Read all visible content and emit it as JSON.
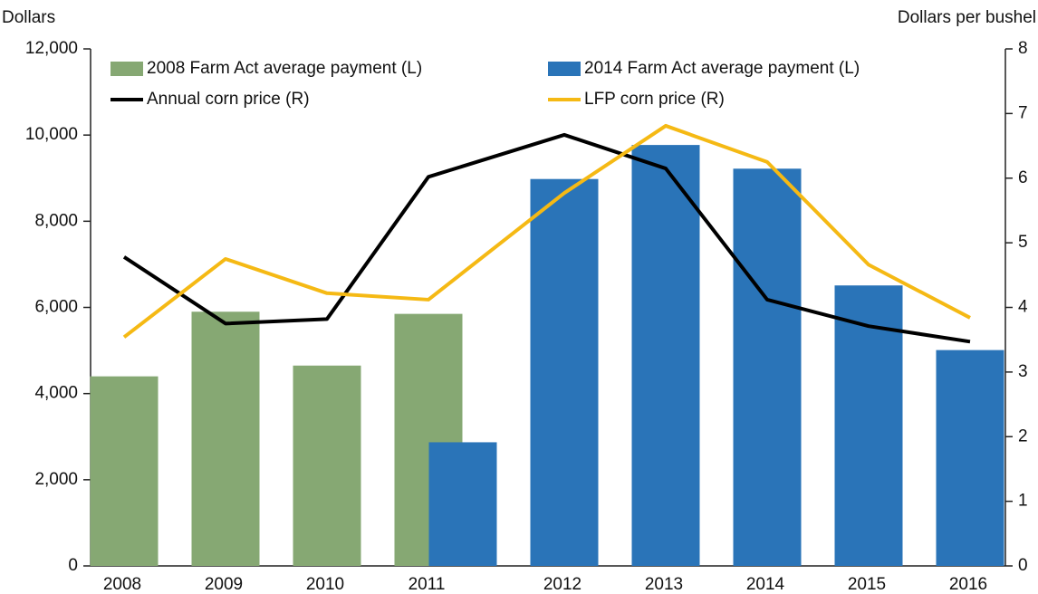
{
  "chart_data": {
    "type": "bar",
    "y_label": "Dollars",
    "y2_label": "Dollars per bushel",
    "categories": [
      "2008",
      "2009",
      "2010",
      "2011",
      "2012",
      "2013",
      "2014",
      "2015",
      "2016"
    ],
    "series": [
      {
        "name": "2008 Farm Act average payment (L)",
        "type": "bar",
        "color": "#86a873",
        "values": [
          4400,
          5900,
          4650,
          5850,
          null,
          null,
          null,
          null,
          null
        ]
      },
      {
        "name": "2014 Farm Act average payment (L)",
        "type": "bar",
        "color": "#2a74b8",
        "values": [
          null,
          null,
          null,
          2870,
          8980,
          9770,
          9220,
          6510,
          5010
        ]
      },
      {
        "name": "Annual corn price (R)",
        "type": "line",
        "axis": "y2",
        "color": "#000000",
        "values": [
          4.78,
          3.75,
          3.82,
          6.02,
          6.67,
          6.15,
          4.12,
          3.71,
          3.47
        ]
      },
      {
        "name": "LFP corn price (R)",
        "type": "line",
        "axis": "y2",
        "color": "#f5b914",
        "values": [
          3.54,
          4.75,
          4.22,
          4.12,
          5.77,
          6.81,
          6.25,
          4.66,
          3.84
        ]
      }
    ],
    "ylim": [
      0,
      12000
    ],
    "yticks": [
      0,
      {
        "value": 2000,
        "label": "2,000"
      },
      {
        "value": 4000,
        "label": "4,000"
      },
      {
        "value": 6000,
        "label": "6,000"
      },
      {
        "value": 8000,
        "label": "8,000"
      },
      {
        "value": 10000,
        "label": "10,000"
      },
      {
        "value": 12000,
        "label": "12,000"
      }
    ],
    "y2lim": [
      0,
      8
    ],
    "y2ticks": [
      0,
      1,
      2,
      3,
      4,
      5,
      6,
      7,
      8
    ],
    "grid": false
  }
}
